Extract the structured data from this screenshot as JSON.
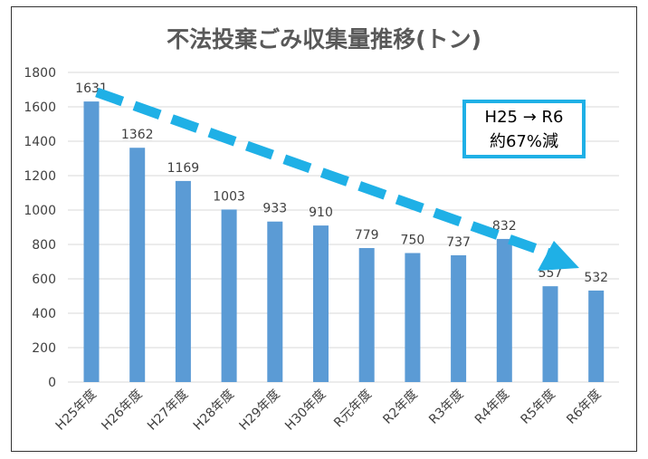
{
  "chart_data": {
    "type": "bar",
    "title": "不法投棄ごみ収集量推移(トン)",
    "categories": [
      "H25年度",
      "H26年度",
      "H27年度",
      "H28年度",
      "H29年度",
      "H30年度",
      "R元年度",
      "R2年度",
      "R3年度",
      "R4年度",
      "R5年度",
      "R6年度"
    ],
    "values": [
      1631,
      1362,
      1169,
      1003,
      933,
      910,
      779,
      750,
      737,
      832,
      557,
      532
    ],
    "ylim": [
      0,
      1800
    ],
    "yticks": [
      "0",
      "200",
      "400",
      "600",
      "800",
      "1000",
      "1200",
      "1400",
      "1600",
      "1800"
    ],
    "grid": true,
    "bar_color": "#5b9bd5",
    "annotation": {
      "line1": "H25 → R6",
      "line2": "約67%減",
      "border_color": "#1fb0e6"
    },
    "trend_arrow": {
      "style": "dashed",
      "color": "#1fb0e6",
      "from": "H25年度",
      "to": "R6年度"
    }
  }
}
